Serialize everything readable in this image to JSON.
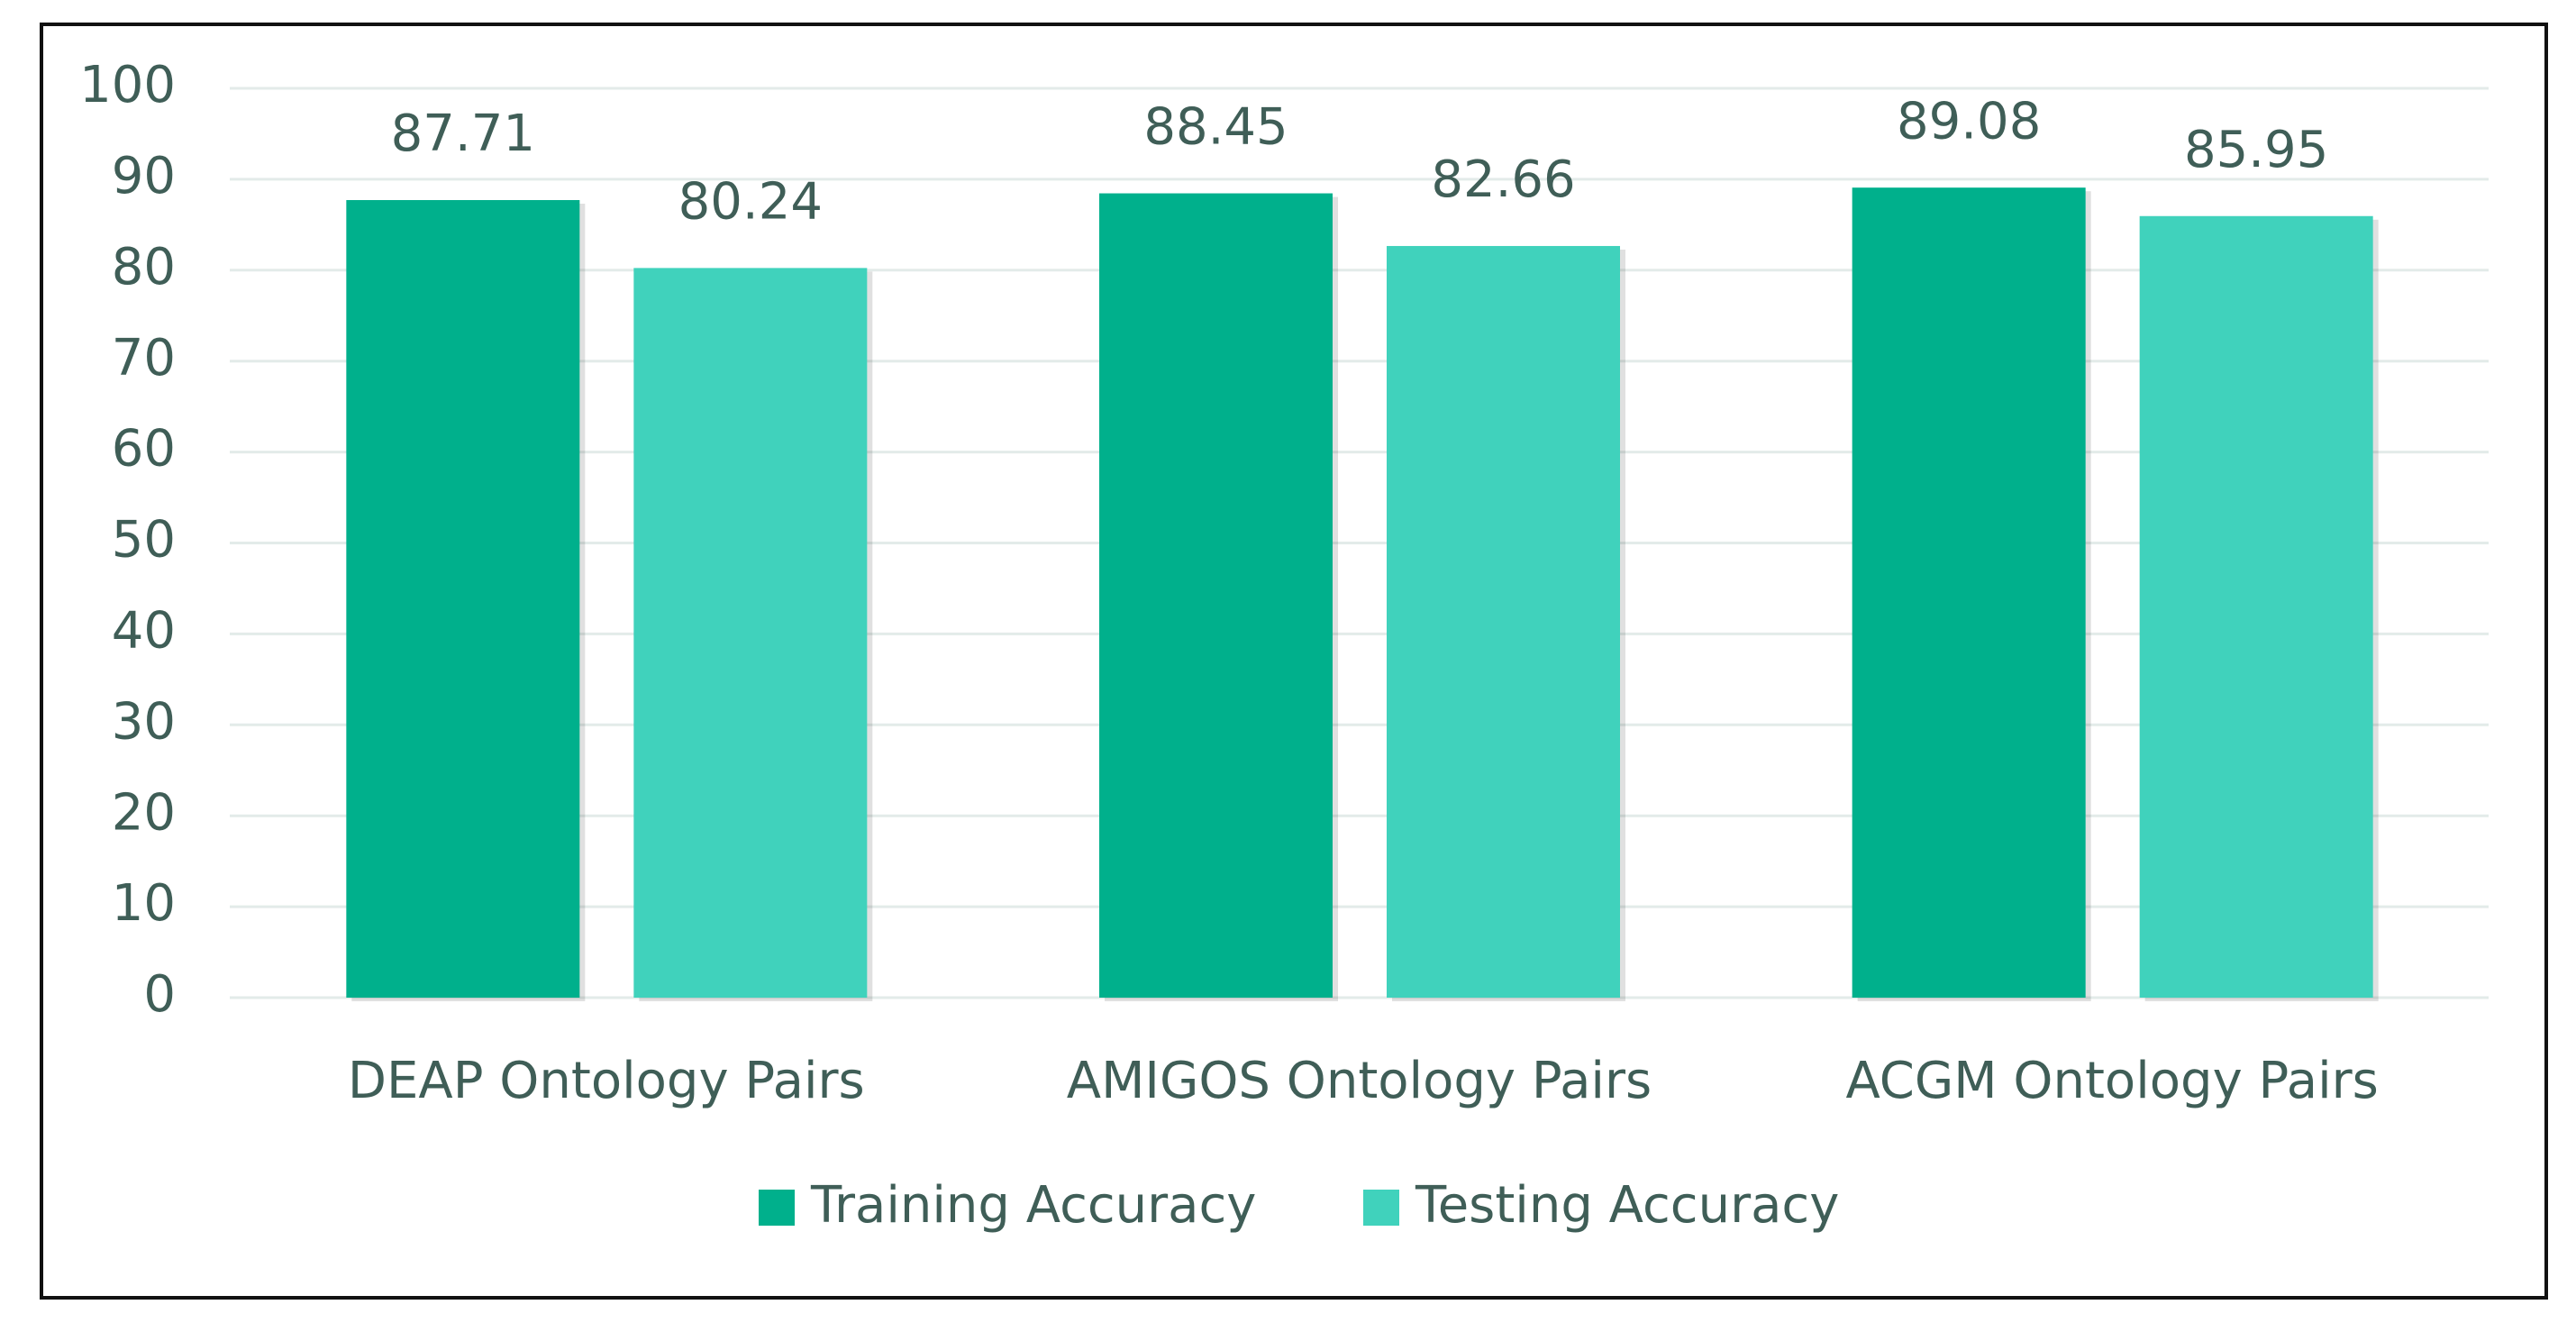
{
  "chart_data": {
    "type": "bar",
    "categories": [
      "DEAP Ontology Pairs",
      "AMIGOS Ontology Pairs",
      "ACGM Ontology Pairs"
    ],
    "series": [
      {
        "name": "Training Accuracy",
        "color": "#00b08c",
        "values": [
          87.71,
          88.45,
          89.08
        ]
      },
      {
        "name": "Testing Accuracy",
        "color": "#40d2bc",
        "values": [
          80.24,
          82.66,
          85.95
        ]
      }
    ],
    "ylim": [
      0,
      100
    ],
    "yticks": [
      0,
      10,
      20,
      30,
      40,
      50,
      60,
      70,
      80,
      90,
      100
    ],
    "grid": true,
    "legend": "bottom"
  }
}
